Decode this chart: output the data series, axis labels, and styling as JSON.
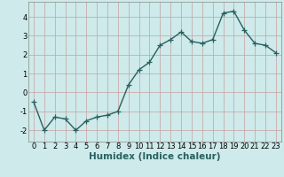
{
  "x": [
    0,
    1,
    2,
    3,
    4,
    5,
    6,
    7,
    8,
    9,
    10,
    11,
    12,
    13,
    14,
    15,
    16,
    17,
    18,
    19,
    20,
    21,
    22,
    23
  ],
  "y": [
    -0.5,
    -2.0,
    -1.3,
    -1.4,
    -2.0,
    -1.5,
    -1.3,
    -1.2,
    -1.0,
    0.4,
    1.2,
    1.6,
    2.5,
    2.8,
    3.2,
    2.7,
    2.6,
    2.8,
    4.2,
    4.3,
    3.3,
    2.6,
    2.5,
    2.1
  ],
  "xlabel": "Humidex (Indice chaleur)",
  "xlim": [
    -0.5,
    23.5
  ],
  "ylim": [
    -2.6,
    4.8
  ],
  "yticks": [
    -2,
    -1,
    0,
    1,
    2,
    3,
    4
  ],
  "xticks": [
    0,
    1,
    2,
    3,
    4,
    5,
    6,
    7,
    8,
    9,
    10,
    11,
    12,
    13,
    14,
    15,
    16,
    17,
    18,
    19,
    20,
    21,
    22,
    23
  ],
  "bg_color": "#ceeaea",
  "grid_color": "#c8a0a0",
  "line_color": "#286060",
  "marker": "+",
  "marker_size": 4,
  "line_width": 1.0,
  "xlabel_fontsize": 7.5,
  "tick_fontsize": 6.0
}
